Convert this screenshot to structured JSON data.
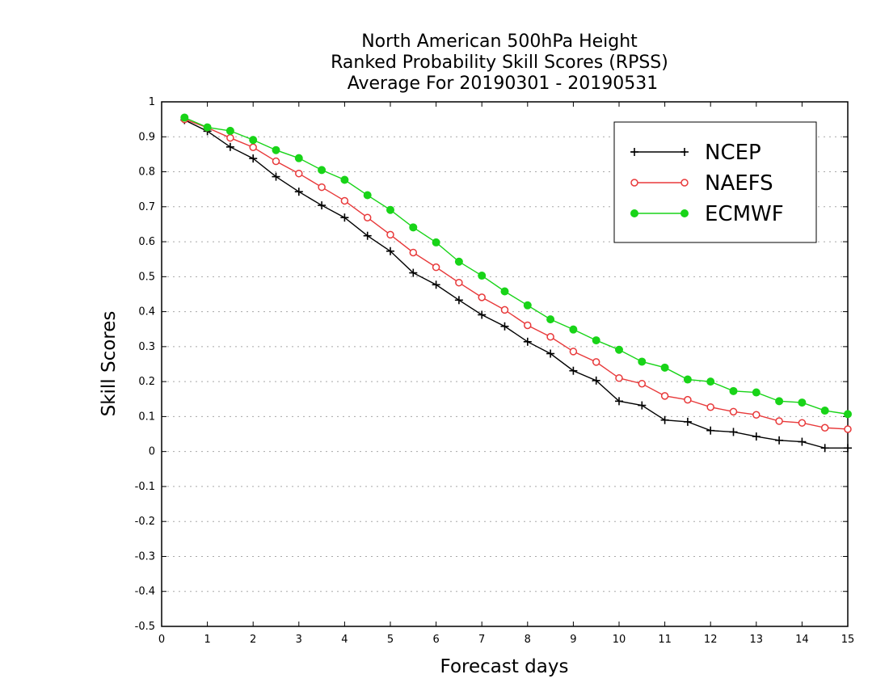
{
  "chart_data": {
    "type": "line",
    "title": [
      "North American 500hPa Height",
      "Ranked Probability Skill Scores (RPSS)",
      "Average For 20190301 - 20190531"
    ],
    "xlabel": "Forecast days",
    "ylabel": "Skill Scores",
    "xlim": [
      0,
      15
    ],
    "ylim": [
      -0.5,
      1
    ],
    "x_ticks": [
      "0",
      "1",
      "2",
      "3",
      "4",
      "5",
      "6",
      "7",
      "8",
      "9",
      "10",
      "11",
      "12",
      "13",
      "14",
      "15"
    ],
    "y_ticks": [
      "1",
      "0.9",
      "0.8",
      "0.7",
      "0.6",
      "0.5",
      "0.4",
      "0.3",
      "0.2",
      "0.1",
      "0",
      "-0.1",
      "-0.2",
      "-0.3",
      "-0.4",
      "-0.5"
    ],
    "grid": true,
    "legend_position": "top-right",
    "x": [
      0.5,
      1,
      1.5,
      2,
      2.5,
      3,
      3.5,
      4,
      4.5,
      5,
      5.5,
      6,
      6.5,
      7,
      7.5,
      8,
      8.5,
      9,
      9.5,
      10,
      10.5,
      11,
      11.5,
      12,
      12.5,
      13,
      13.5,
      14,
      14.5,
      15
    ],
    "series": [
      {
        "name": "NCEP",
        "color": "#000000",
        "marker": "plus",
        "values": [
          0.948,
          0.916,
          0.871,
          0.838,
          0.786,
          0.743,
          0.704,
          0.669,
          0.617,
          0.573,
          0.511,
          0.477,
          0.433,
          0.391,
          0.358,
          0.314,
          0.28,
          0.231,
          0.203,
          0.144,
          0.132,
          0.09,
          0.085,
          0.06,
          0.056,
          0.043,
          0.032,
          0.028,
          0.01,
          0.01
        ]
      },
      {
        "name": "NAEFS",
        "color": "#e8393a",
        "marker": "open-circle",
        "values": [
          0.95,
          0.926,
          0.897,
          0.87,
          0.83,
          0.795,
          0.756,
          0.717,
          0.669,
          0.62,
          0.569,
          0.527,
          0.483,
          0.441,
          0.405,
          0.361,
          0.328,
          0.286,
          0.256,
          0.21,
          0.194,
          0.159,
          0.148,
          0.127,
          0.114,
          0.105,
          0.087,
          0.082,
          0.068,
          0.064
        ]
      },
      {
        "name": "ECMWF",
        "color": "#18d418",
        "marker": "filled-circle",
        "values": [
          0.955,
          0.927,
          0.917,
          0.891,
          0.862,
          0.839,
          0.805,
          0.777,
          0.733,
          0.691,
          0.641,
          0.598,
          0.543,
          0.503,
          0.458,
          0.418,
          0.378,
          0.349,
          0.318,
          0.291,
          0.257,
          0.24,
          0.206,
          0.2,
          0.173,
          0.169,
          0.144,
          0.14,
          0.117,
          0.107
        ]
      }
    ]
  }
}
